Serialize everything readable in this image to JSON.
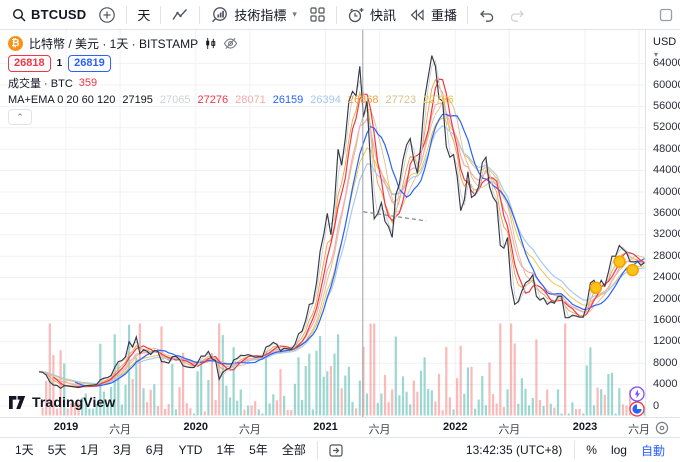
{
  "colors": {
    "accent_blue": "#2962ff",
    "red": "#f23645",
    "text_dark": "#131722",
    "btc_orange": "#f7931a"
  },
  "toolbar": {
    "symbol": "BTCUSD",
    "interval": "天",
    "indicators": "技術指標",
    "alerts": "快訊",
    "replay": "重播"
  },
  "legend": {
    "title": "比特幣 / 美元 · 1天 · BITSTAMP",
    "bid": "26818",
    "spread": "1",
    "ask": "26819",
    "volume_label": "成交量 · BTC",
    "volume_value": "359",
    "ma_label": "MA+EMA 0 20 60 120",
    "ma_values": [
      {
        "text": "27195",
        "color": "#131722"
      },
      {
        "text": "27065",
        "color": "#cfd2d9"
      },
      {
        "text": "27276",
        "color": "#f23645"
      },
      {
        "text": "28071",
        "color": "#f8a8ac"
      },
      {
        "text": "26159",
        "color": "#2962ff"
      },
      {
        "text": "26394",
        "color": "#a9c6ee"
      },
      {
        "text": "26868",
        "color": "#f0a03c"
      },
      {
        "text": "27723",
        "color": "#dcbf8e"
      },
      {
        "text": "22766",
        "color": "#eac23f"
      }
    ]
  },
  "price_axis": {
    "currency": "USD"
  },
  "bottom_bar": {
    "ranges": [
      "1天",
      "5天",
      "1月",
      "3月",
      "6月",
      "YTD",
      "1年",
      "5年",
      "全部"
    ],
    "clock": "13:42:35 (UTC+8)",
    "percent": "%",
    "log": "log",
    "auto": "自動"
  },
  "watermark": "TradingView",
  "chart_data": {
    "type": "line",
    "title": "BTCUSD · 比特幣 / 美元 · 1天 · BITSTAMP",
    "ylabel": "USD",
    "ylim": [
      0,
      68000
    ],
    "grid": true,
    "legend_position": "top-left",
    "x_unit": "months since 2018-12-01",
    "x_start": -1.5,
    "x_step": 0.333333,
    "y_ticks": [
      0,
      4000,
      8000,
      12000,
      16000,
      20000,
      24000,
      28000,
      32000,
      36000,
      40000,
      44000,
      48000,
      52000,
      56000,
      60000,
      64000
    ],
    "x_ticks": [
      {
        "m": 1,
        "label": "2019",
        "major": true
      },
      {
        "m": 6,
        "label": "六月"
      },
      {
        "m": 13,
        "label": "2020",
        "major": true
      },
      {
        "m": 18,
        "label": "六月"
      },
      {
        "m": 25,
        "label": "2021",
        "major": true
      },
      {
        "m": 30,
        "label": "六月"
      },
      {
        "m": 37,
        "label": "2022",
        "major": true
      },
      {
        "m": 42,
        "label": "六月"
      },
      {
        "m": 49,
        "label": "2023",
        "major": true
      },
      {
        "m": 54,
        "label": "六月"
      }
    ],
    "price_color": "#363a45",
    "grid_color": "#f0f1f4",
    "vol_up": "rgba(38,166,154,0.45)",
    "vol_down": "rgba(239,83,80,0.40)",
    "price": [
      6400,
      6300,
      5800,
      4500,
      3900,
      3850,
      3300,
      3800,
      3750,
      3650,
      3550,
      3450,
      3600,
      3800,
      3850,
      3900,
      4000,
      4900,
      5200,
      5300,
      5700,
      7200,
      8300,
      8500,
      9200,
      12000,
      11000,
      12900,
      9800,
      10500,
      10200,
      9600,
      10400,
      10200,
      8300,
      8200,
      8000,
      9200,
      9300,
      8700,
      7500,
      7300,
      7200,
      7200,
      8100,
      9350,
      9300,
      10200,
      8800,
      8500,
      5000,
      6300,
      6800,
      7100,
      8600,
      8900,
      9500,
      9400,
      9600,
      9400,
      9100,
      9200,
      9200,
      11000,
      11300,
      11900,
      11500,
      10300,
      10800,
      10700,
      10600,
      11500,
      13500,
      14000,
      16000,
      19000,
      19200,
      23000,
      28900,
      32000,
      36000,
      32000,
      38000,
      48000,
      45000,
      50000,
      57000,
      58800,
      58000,
      63500,
      54000,
      57000,
      45000,
      35000,
      36000,
      38000,
      34500,
      33500,
      31500,
      39500,
      41500,
      46000,
      48800,
      50000,
      46000,
      43500,
      49000,
      57500,
      61500,
      65500,
      63500,
      57500,
      57000,
      48500,
      46500,
      47000,
      43000,
      36500,
      38500,
      43800,
      39000,
      39500,
      41000,
      45500,
      46500,
      41000,
      39000,
      38000,
      30000,
      29500,
      31500,
      22500,
      19000,
      19500,
      21500,
      23000,
      23500,
      24500,
      20500,
      19800,
      20200,
      19000,
      19500,
      19200,
      20500,
      20500,
      16500,
      16500,
      17000,
      16800,
      16600,
      16600,
      19000,
      23000,
      23500,
      22000,
      23500,
      22400,
      25000,
      28000,
      28000,
      30000,
      29300,
      28700,
      27000,
      26900,
      27100,
      26300,
      26818
    ],
    "overlays": [
      {
        "name": "EMA20",
        "type": "ema",
        "window": 4,
        "color": "#f0a03c",
        "width": 0.9
      },
      {
        "name": "MA-tan",
        "type": "sma",
        "window": 8,
        "color": "#dcbf8e",
        "width": 0.9
      },
      {
        "name": "EMA-yl",
        "type": "ema",
        "window": 13,
        "color": "#eac23f",
        "width": 0.9
      },
      {
        "name": "EMA120",
        "type": "ema",
        "window": 16,
        "color": "#a9c9f3",
        "width": 1.2
      },
      {
        "name": "EMA60",
        "type": "ema",
        "window": 8,
        "color": "#f7abaf",
        "width": 1.2
      },
      {
        "name": "MA120",
        "type": "sma",
        "window": 11,
        "color": "#2962ff",
        "width": 1.2
      },
      {
        "name": "MA60",
        "type": "sma",
        "window": 5,
        "color": "#f23645",
        "width": 1.2
      },
      {
        "name": "MA20",
        "type": "sma",
        "window": 2,
        "color": "#c9ccd3",
        "width": 0.9
      }
    ],
    "trendline": {
      "m1": 28.5,
      "p1": 36300,
      "m2": 34.3,
      "p2": 34600
    },
    "vline_m": 28.45,
    "markers": [
      {
        "m": 50.0,
        "price": 22100
      },
      {
        "m": 52.2,
        "price": 27000
      },
      {
        "m": 53.4,
        "price": 25400
      }
    ]
  }
}
